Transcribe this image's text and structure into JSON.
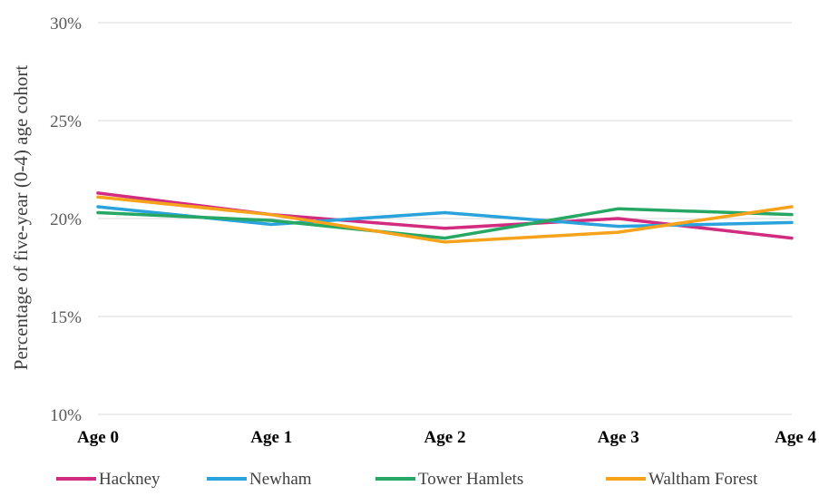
{
  "chart_data": {
    "type": "line",
    "title": "",
    "xlabel": "",
    "ylabel": "Percentage of five-year (0-4) age cohort",
    "categories": [
      "Age 0",
      "Age 1",
      "Age 2",
      "Age 3",
      "Age 4"
    ],
    "ylim": [
      10,
      30
    ],
    "yticks": [
      10,
      15,
      20,
      25,
      30
    ],
    "ytick_labels": [
      "10%",
      "15%",
      "20%",
      "25%",
      "30%"
    ],
    "grid": true,
    "legend_position": "bottom",
    "series": [
      {
        "name": "Hackney",
        "color": "#d12c7f",
        "values": [
          21.3,
          20.2,
          19.5,
          20.0,
          19.0
        ]
      },
      {
        "name": "Newham",
        "color": "#2aa3dc",
        "values": [
          20.6,
          19.7,
          20.3,
          19.6,
          19.8
        ]
      },
      {
        "name": "Tower Hamlets",
        "color": "#26a764",
        "values": [
          20.3,
          19.9,
          19.0,
          20.5,
          20.2
        ]
      },
      {
        "name": "Waltham Forest",
        "color": "#f7a21b",
        "values": [
          21.1,
          20.2,
          18.8,
          19.3,
          20.6
        ]
      }
    ]
  }
}
